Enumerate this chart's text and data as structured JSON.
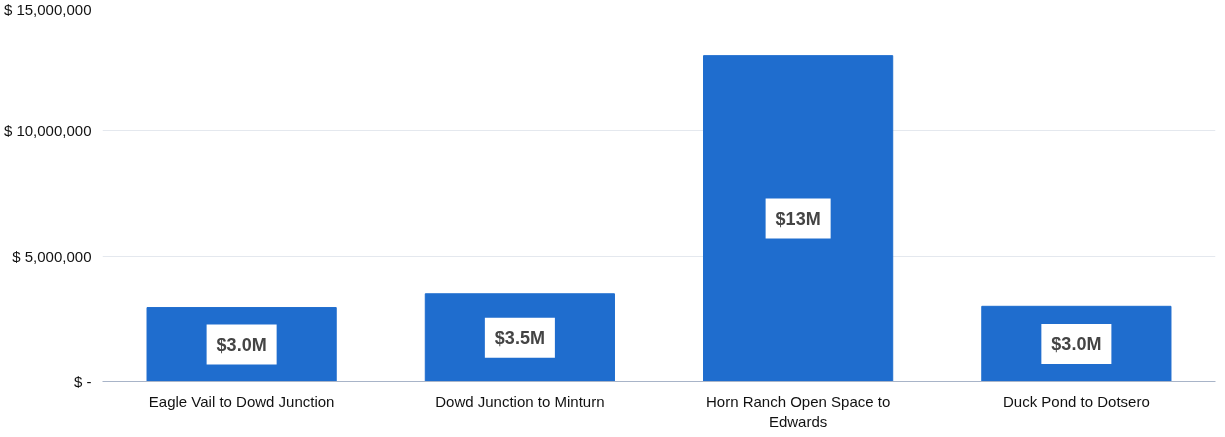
{
  "chart_data": {
    "type": "bar",
    "categories": [
      "Eagle Vail to Dowd Junction",
      "Dowd Junction to Minturn",
      "Horn Ranch Open Space to\nEdwards",
      "Duck Pond to Dotsero"
    ],
    "values": [
      2950000,
      3500000,
      13000000,
      3000000
    ],
    "value_labels": [
      "$3.0M",
      "$3.5M",
      "$13M",
      "$3.0M"
    ],
    "color": "#1f6dce",
    "ylim": [
      0,
      15000000
    ],
    "yticks": [
      {
        "value": 0,
        "label": "$ -"
      },
      {
        "value": 5000000,
        "label": "$ 5,000,000"
      },
      {
        "value": 10000000,
        "label": "$ 10,000,000"
      },
      {
        "value": 15000000,
        "label": "$ 15,000,000"
      }
    ],
    "grid": "y"
  }
}
